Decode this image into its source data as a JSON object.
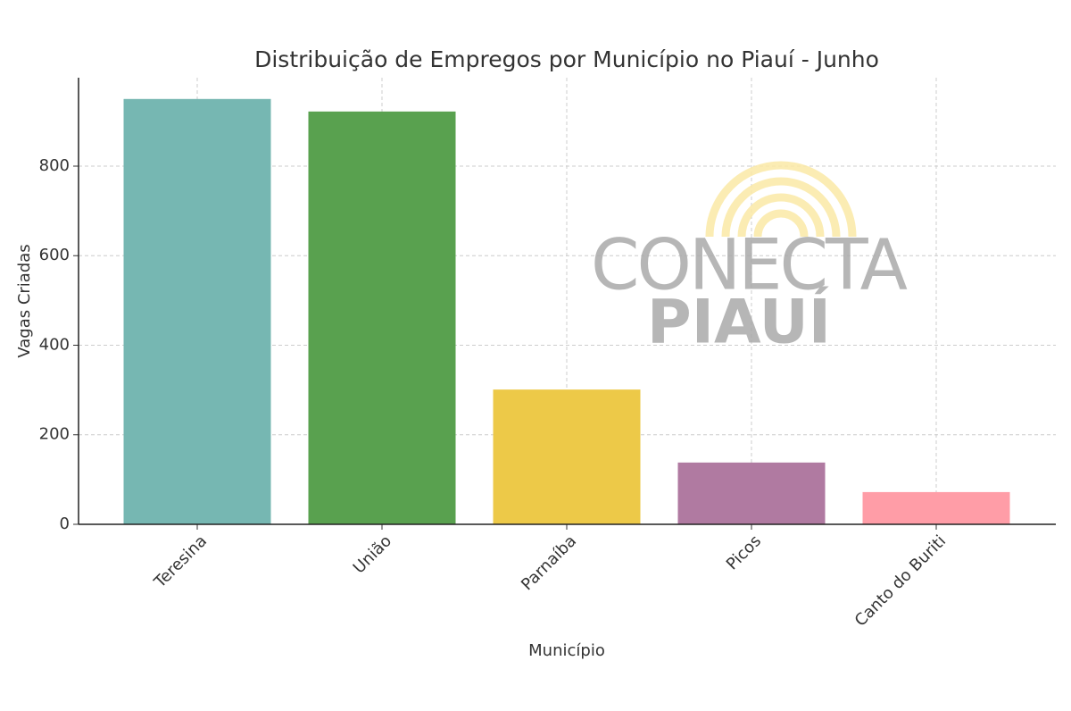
{
  "chart_data": {
    "type": "bar",
    "title": "Distribuição de Empregos por Município no Piauí - Junho",
    "x_label": "Município",
    "y_label": "Vagas Criadas",
    "categories": [
      "Teresina",
      "União",
      "Parnaíba",
      "Picos",
      "Canto do Buriti"
    ],
    "values": [
      950,
      922,
      301,
      138,
      72
    ],
    "colors": [
      "#76b7b2",
      "#59a14f",
      "#edc948",
      "#b07aa1",
      "#ff9da7"
    ],
    "ylim": [
      0,
      997.5
    ],
    "yticks": [
      0,
      200,
      400,
      600,
      800
    ],
    "grid": true,
    "watermark": {
      "top": "CONECTA",
      "bottom": "PIAUÍ"
    }
  }
}
